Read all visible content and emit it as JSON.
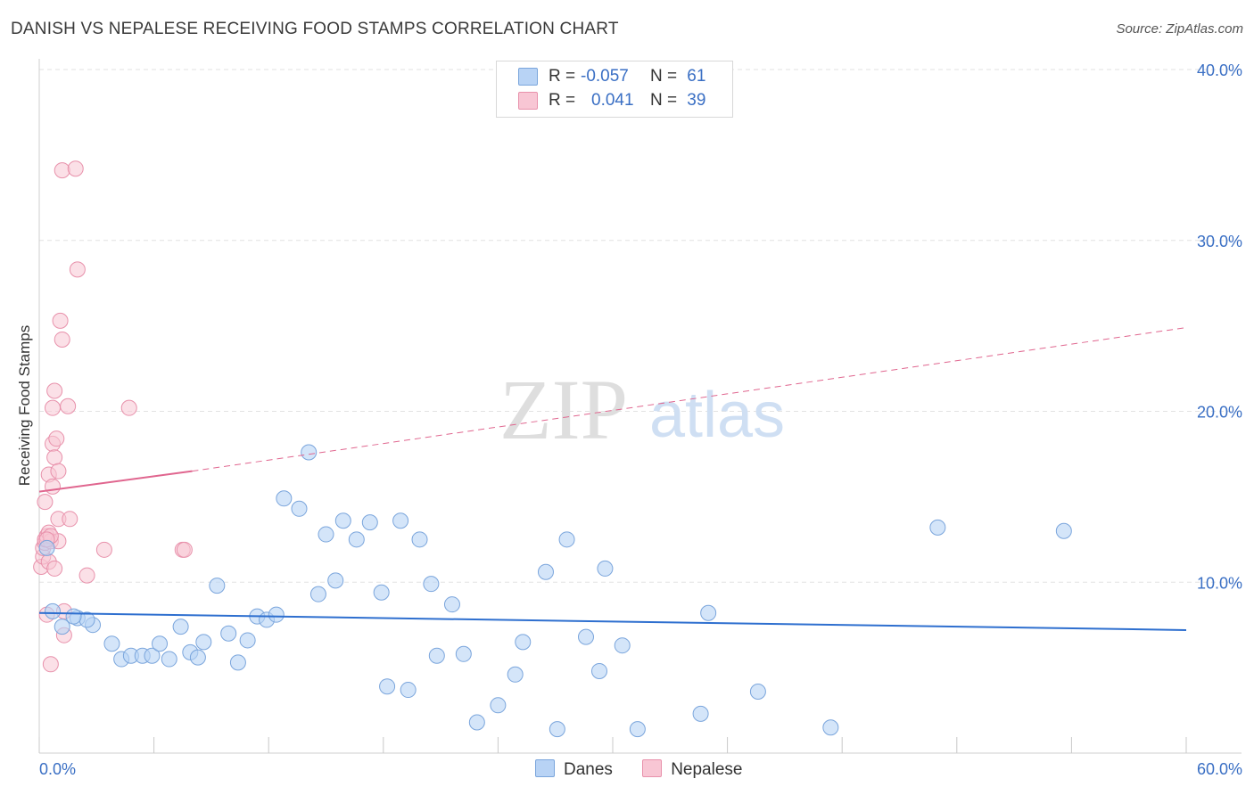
{
  "title": "DANISH VS NEPALESE RECEIVING FOOD STAMPS CORRELATION CHART",
  "source": "Source: ZipAtlas.com",
  "watermark": {
    "zip": "ZIP",
    "atlas": "atlas"
  },
  "legend": {
    "rows": [
      {
        "r_label": "R =",
        "r_value": "-0.057",
        "n_label": "N =",
        "n_value": "61"
      },
      {
        "r_label": "R =",
        "r_value": "0.041",
        "n_label": "N =",
        "n_value": "39"
      }
    ]
  },
  "bottom_legend": {
    "danes": "Danes",
    "nepalese": "Nepalese"
  },
  "colors": {
    "danes_fill": "#b8d3f5",
    "danes_stroke": "#7aa5dc",
    "danes_line": "#2e6fcf",
    "nepalese_fill": "#f8c6d4",
    "nepalese_stroke": "#e891ab",
    "nepalese_line": "#e0668f",
    "tick_label": "#3a6fc4",
    "grid": "#e2e2e2"
  },
  "chart_data": {
    "type": "scatter",
    "title": "DANISH VS NEPALESE RECEIVING FOOD STAMPS CORRELATION CHART",
    "xlabel": "",
    "ylabel": "Receiving Food Stamps",
    "xlim": [
      0,
      60
    ],
    "ylim": [
      0,
      40
    ],
    "x_tick_labels": [
      "0.0%",
      "60.0%"
    ],
    "y_ticks": [
      10,
      20,
      30,
      40
    ],
    "y_tick_labels": [
      "10.0%",
      "20.0%",
      "30.0%",
      "40.0%"
    ],
    "series": [
      {
        "name": "Danes",
        "points": [
          [
            0.4,
            12.0
          ],
          [
            0.7,
            8.3
          ],
          [
            1.2,
            7.4
          ],
          [
            2.0,
            7.9
          ],
          [
            2.8,
            7.5
          ],
          [
            3.8,
            6.4
          ],
          [
            4.3,
            5.5
          ],
          [
            4.8,
            5.7
          ],
          [
            5.4,
            5.7
          ],
          [
            5.9,
            5.7
          ],
          [
            6.3,
            6.4
          ],
          [
            6.8,
            5.5
          ],
          [
            7.4,
            7.4
          ],
          [
            7.9,
            5.9
          ],
          [
            8.3,
            5.6
          ],
          [
            8.6,
            6.5
          ],
          [
            9.3,
            9.8
          ],
          [
            9.9,
            7.0
          ],
          [
            10.4,
            5.3
          ],
          [
            10.9,
            6.6
          ],
          [
            11.4,
            8.0
          ],
          [
            11.9,
            7.8
          ],
          [
            12.4,
            8.1
          ],
          [
            12.8,
            14.9
          ],
          [
            13.6,
            14.3
          ],
          [
            14.1,
            17.6
          ],
          [
            14.6,
            9.3
          ],
          [
            15.0,
            12.8
          ],
          [
            15.5,
            10.1
          ],
          [
            15.9,
            13.6
          ],
          [
            16.6,
            12.5
          ],
          [
            17.3,
            13.5
          ],
          [
            17.9,
            9.4
          ],
          [
            18.2,
            3.9
          ],
          [
            18.9,
            13.6
          ],
          [
            19.3,
            3.7
          ],
          [
            19.9,
            12.5
          ],
          [
            20.5,
            9.9
          ],
          [
            20.8,
            5.7
          ],
          [
            21.6,
            8.7
          ],
          [
            22.2,
            5.8
          ],
          [
            22.9,
            1.8
          ],
          [
            24.0,
            2.8
          ],
          [
            24.9,
            4.6
          ],
          [
            25.3,
            6.5
          ],
          [
            26.5,
            10.6
          ],
          [
            27.1,
            1.4
          ],
          [
            27.6,
            12.5
          ],
          [
            28.6,
            6.8
          ],
          [
            29.3,
            4.8
          ],
          [
            29.6,
            10.8
          ],
          [
            30.5,
            6.3
          ],
          [
            31.3,
            1.4
          ],
          [
            34.6,
            2.3
          ],
          [
            35.0,
            8.2
          ],
          [
            37.6,
            3.6
          ],
          [
            41.4,
            1.5
          ],
          [
            47.0,
            13.2
          ],
          [
            53.6,
            13.0
          ],
          [
            2.5,
            7.8
          ],
          [
            1.8,
            8.0
          ]
        ],
        "trend": {
          "x": [
            0,
            60
          ],
          "y": [
            8.2,
            7.2
          ]
        }
      },
      {
        "name": "Nepalese",
        "points": [
          [
            0.1,
            10.9
          ],
          [
            0.2,
            11.5
          ],
          [
            0.2,
            12.0
          ],
          [
            0.3,
            12.3
          ],
          [
            0.3,
            12.5
          ],
          [
            0.4,
            12.7
          ],
          [
            0.3,
            14.7
          ],
          [
            0.4,
            8.1
          ],
          [
            0.5,
            11.2
          ],
          [
            0.5,
            12.9
          ],
          [
            0.5,
            16.3
          ],
          [
            0.6,
            5.2
          ],
          [
            0.6,
            12.4
          ],
          [
            0.7,
            15.6
          ],
          [
            0.7,
            18.1
          ],
          [
            0.7,
            20.2
          ],
          [
            0.8,
            17.3
          ],
          [
            0.8,
            21.2
          ],
          [
            0.8,
            10.8
          ],
          [
            0.9,
            18.4
          ],
          [
            1.0,
            16.5
          ],
          [
            1.0,
            13.7
          ],
          [
            1.0,
            12.4
          ],
          [
            1.1,
            25.3
          ],
          [
            1.2,
            24.2
          ],
          [
            1.2,
            34.1
          ],
          [
            1.3,
            6.9
          ],
          [
            1.3,
            8.3
          ],
          [
            1.5,
            20.3
          ],
          [
            1.6,
            13.7
          ],
          [
            1.9,
            34.2
          ],
          [
            2.0,
            28.3
          ],
          [
            2.5,
            10.4
          ],
          [
            3.4,
            11.9
          ],
          [
            4.7,
            20.2
          ],
          [
            7.5,
            11.9
          ],
          [
            7.6,
            11.9
          ],
          [
            0.6,
            12.7
          ],
          [
            0.4,
            12.5
          ]
        ],
        "trend_solid": {
          "x": [
            0,
            8
          ],
          "y": [
            15.3,
            16.5
          ]
        },
        "trend_dashed": {
          "x": [
            8,
            60
          ],
          "y": [
            16.5,
            24.9
          ]
        }
      }
    ]
  }
}
